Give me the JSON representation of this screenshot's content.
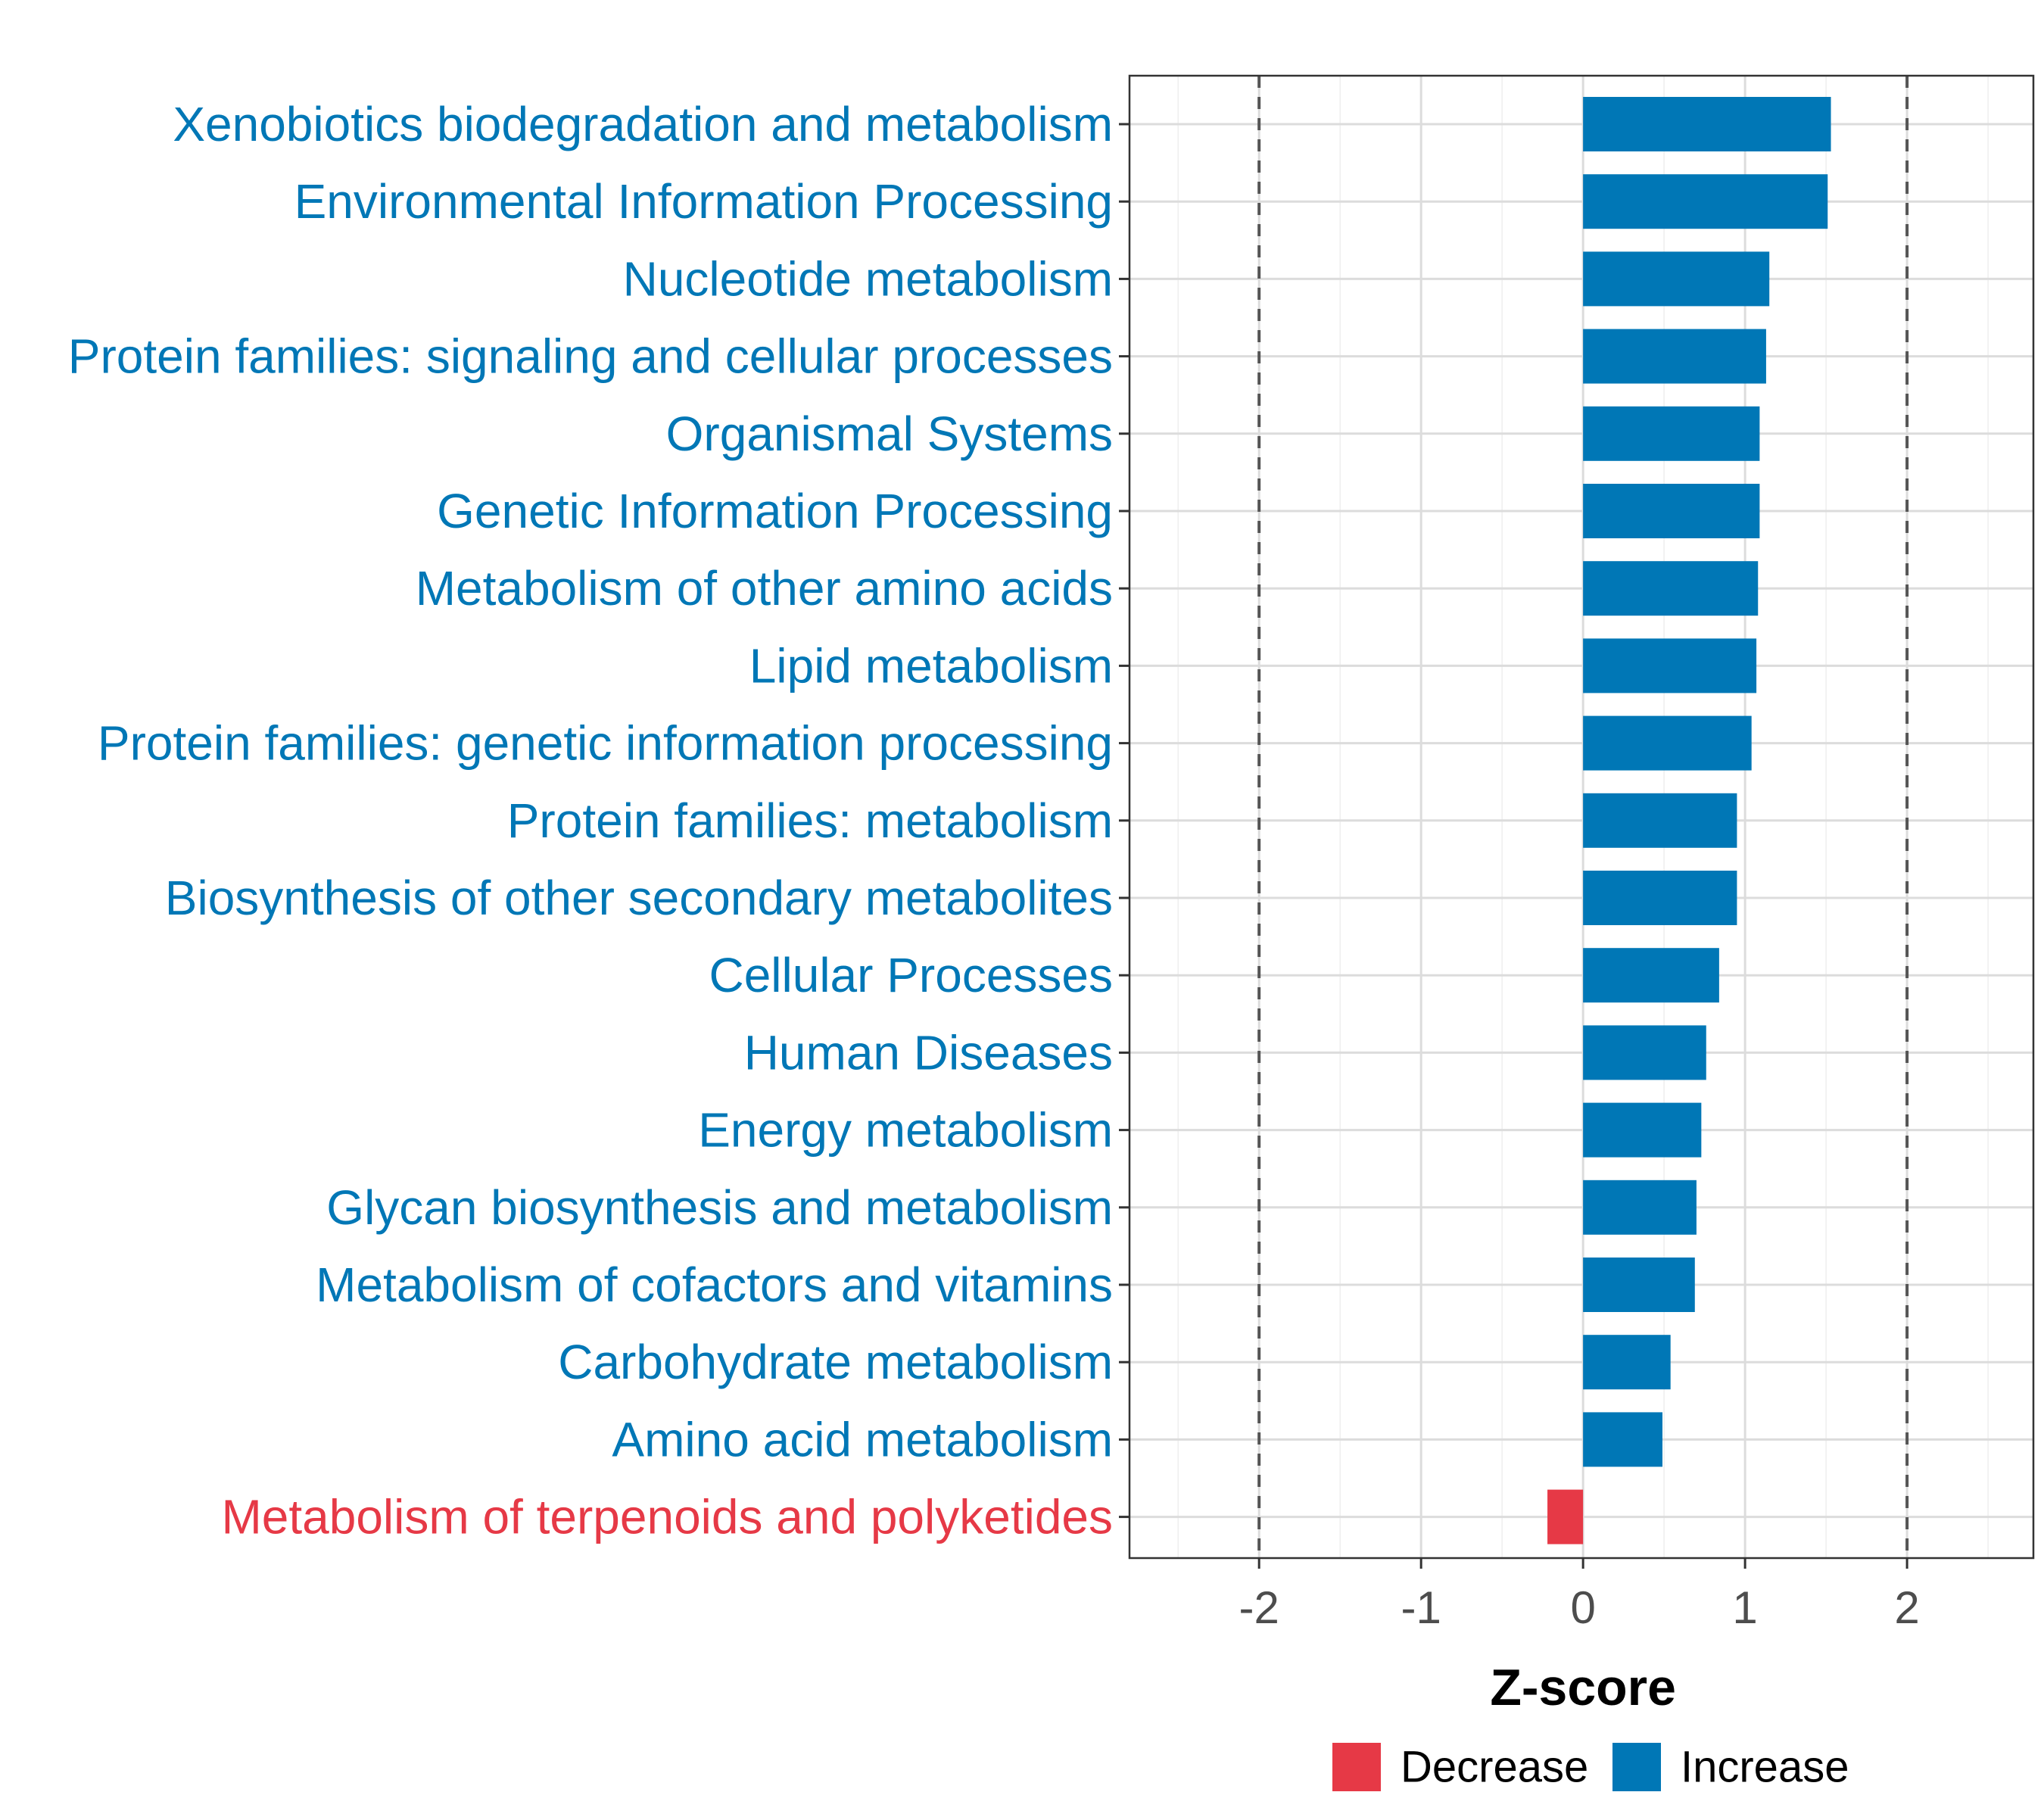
{
  "chart_data": {
    "type": "bar",
    "orientation": "horizontal",
    "title": "",
    "xlabel": "Z-score",
    "ylabel": "",
    "xlim": [
      -2.8,
      2.78
    ],
    "x_ticks": [
      -2,
      -1,
      0,
      1,
      2
    ],
    "x_tick_labels": [
      "-2",
      "-1",
      "0",
      "1",
      "2"
    ],
    "reference_lines": [
      -2,
      2
    ],
    "grid": true,
    "categories": [
      "Xenobiotics biodegradation and metabolism",
      "Environmental Information Processing",
      "Nucleotide metabolism",
      "Protein families: signaling and cellular processes",
      "Organismal Systems",
      "Genetic Information Processing",
      "Metabolism of other amino acids",
      "Lipid metabolism",
      "Protein families: genetic information processing",
      "Protein families: metabolism",
      "Biosynthesis of other secondary metabolites",
      "Cellular Processes",
      "Human Diseases",
      "Energy metabolism",
      "Glycan biosynthesis and metabolism",
      "Metabolism of cofactors and vitamins",
      "Carbohydrate metabolism",
      "Amino acid metabolism",
      "Metabolism of terpenoids and polyketides"
    ],
    "values": [
      1.53,
      1.51,
      1.15,
      1.13,
      1.09,
      1.09,
      1.08,
      1.07,
      1.04,
      0.95,
      0.95,
      0.84,
      0.76,
      0.73,
      0.7,
      0.69,
      0.54,
      0.49,
      -0.22
    ],
    "groups": [
      "Increase",
      "Increase",
      "Increase",
      "Increase",
      "Increase",
      "Increase",
      "Increase",
      "Increase",
      "Increase",
      "Increase",
      "Increase",
      "Increase",
      "Increase",
      "Increase",
      "Increase",
      "Increase",
      "Increase",
      "Increase",
      "Decrease"
    ],
    "legend": {
      "position": "bottom",
      "entries": [
        {
          "label": "Decrease",
          "color": "#E63946"
        },
        {
          "label": "Increase",
          "color": "#0077B6"
        }
      ]
    },
    "colors": {
      "Decrease": "#E63946",
      "Increase": "#0077B6"
    }
  }
}
